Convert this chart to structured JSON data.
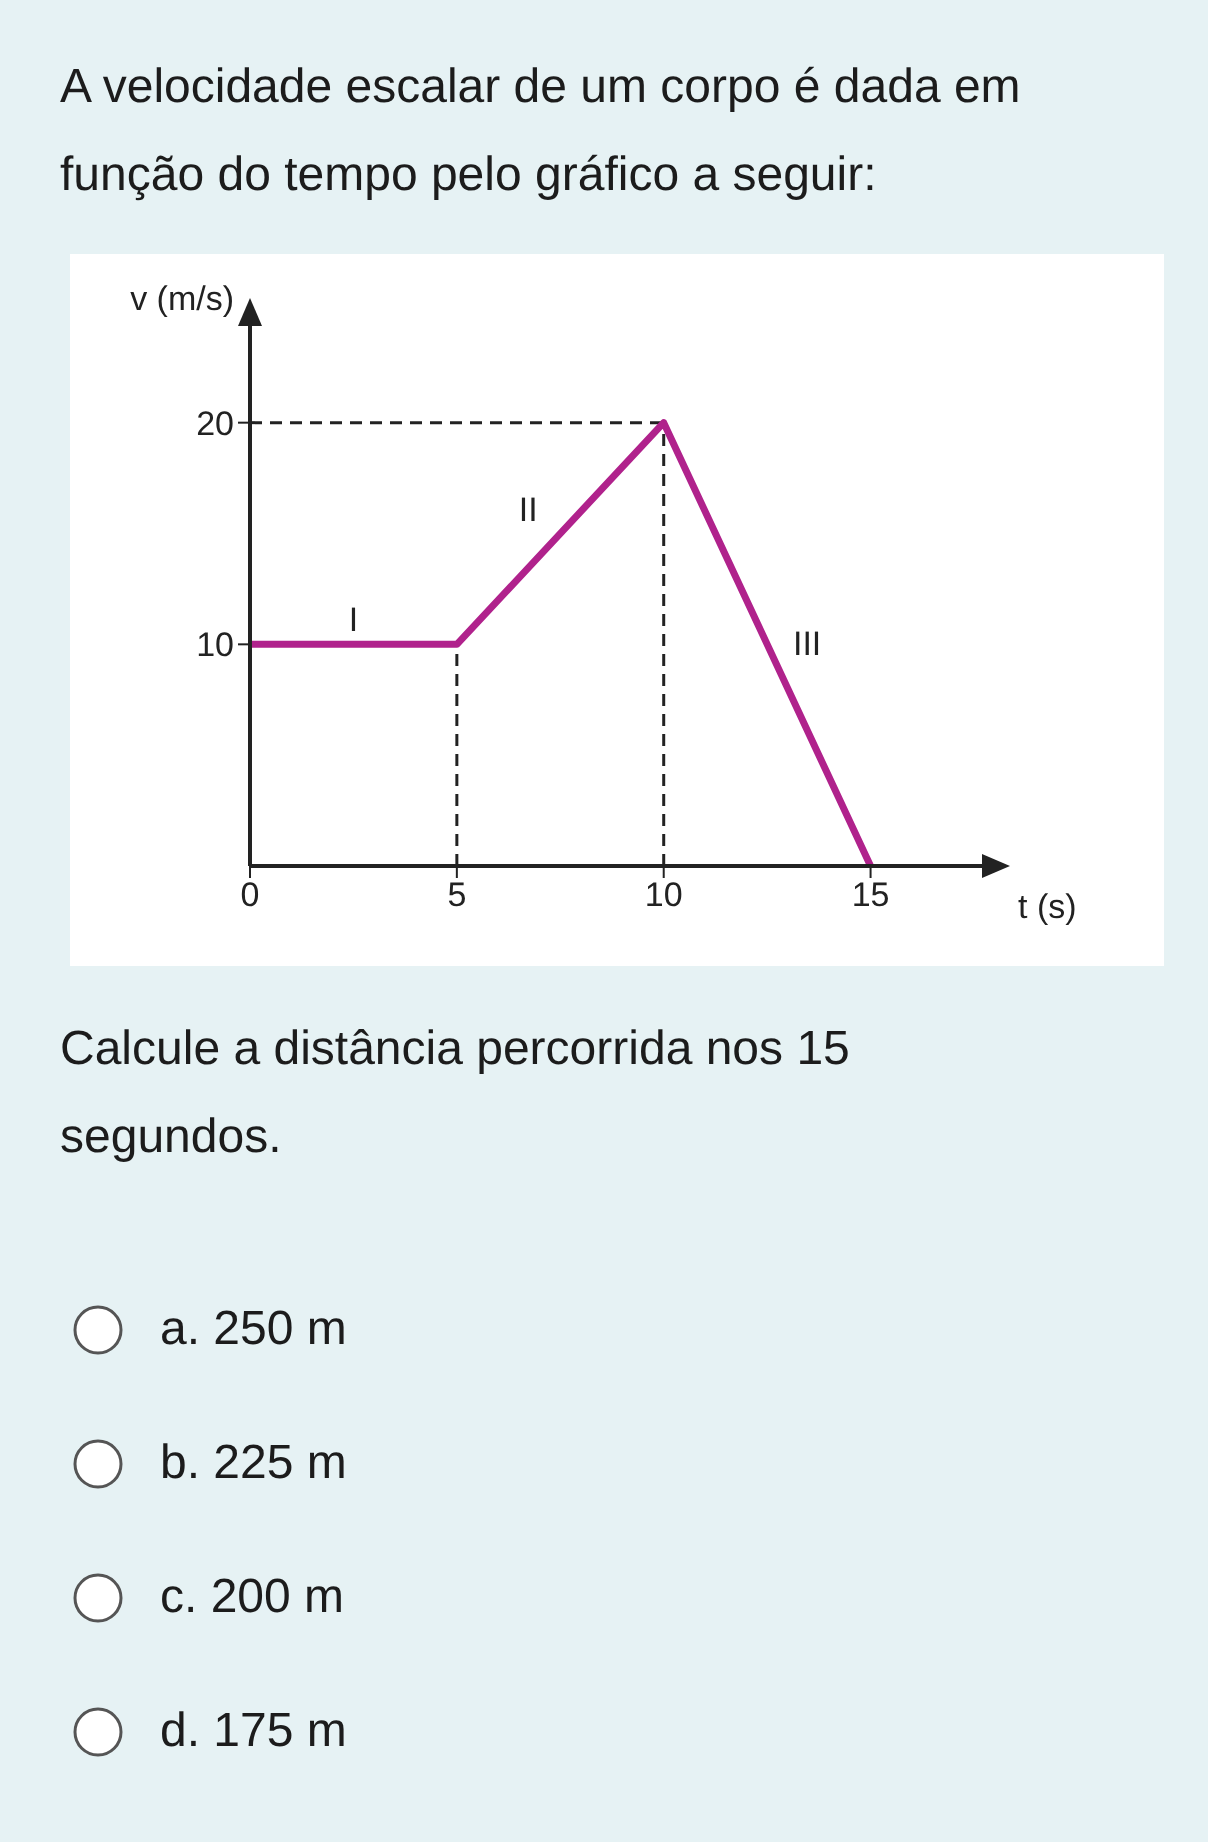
{
  "chart_data": {
    "type": "line",
    "title": "A velocidade escalar de um corpo é dada em função do tempo pelo gráfico a seguir:",
    "xlabel": "t (s)",
    "ylabel": "v (m/s)",
    "x": [
      0,
      5,
      10,
      15
    ],
    "series": [
      {
        "color": "#b0228c",
        "values": [
          10,
          10,
          20,
          0
        ]
      }
    ],
    "xlim": [
      0,
      17.5
    ],
    "ylim": [
      0,
      24
    ],
    "xticks": [
      0,
      5,
      10,
      15
    ],
    "yticks": [
      10,
      20
    ],
    "grid": false,
    "legend": false,
    "marker": "none",
    "line_style": "solid",
    "ref_lines": [
      {
        "axis": "y",
        "value": 20,
        "color": "#222222",
        "line_style": "dashed"
      },
      {
        "axis": "x",
        "value": 5,
        "color": "#222222",
        "line_style": "dashed"
      },
      {
        "axis": "x",
        "value": 10,
        "color": "#222222",
        "line_style": "dashed"
      }
    ],
    "annotations": [
      {
        "text": "I",
        "x": 2.5,
        "y": 10
      },
      {
        "text": "II",
        "x": 7.5,
        "y": 15
      },
      {
        "text": "III",
        "x": 12.5,
        "y": 10
      },
      "Calcule a distância percorrida nos 15 segundos.",
      "a. 250 m",
      "b. 225 m",
      "c. 200 m",
      "d. 175 m"
    ]
  }
}
